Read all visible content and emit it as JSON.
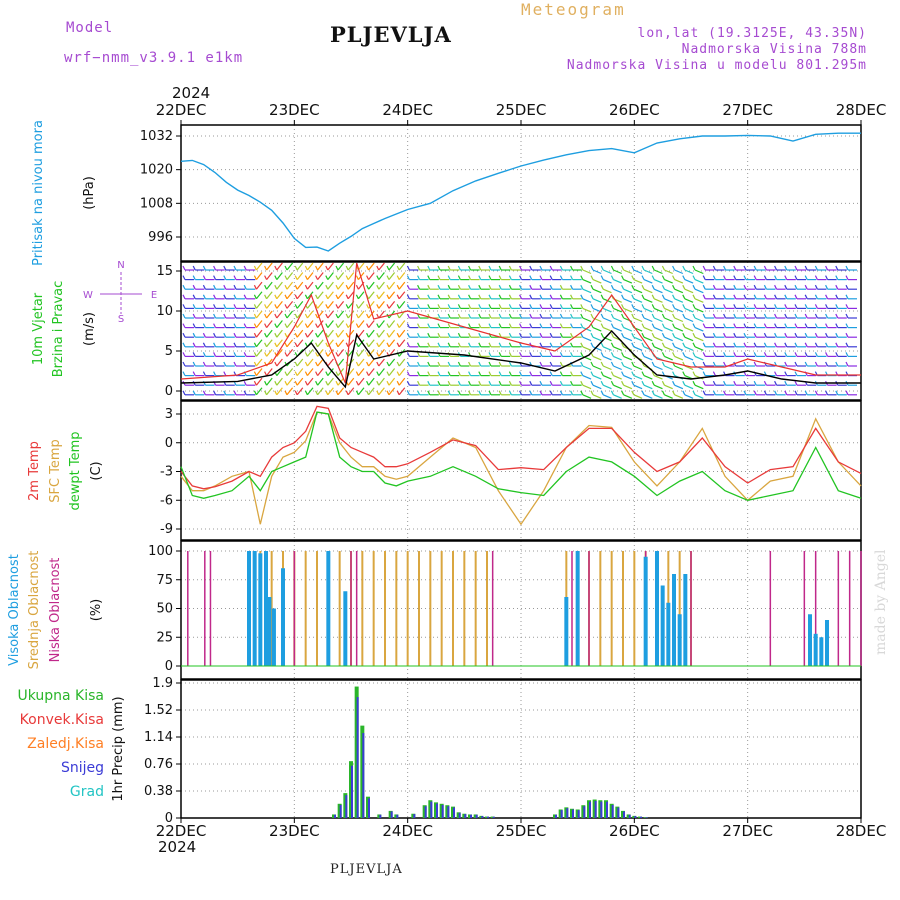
{
  "header": {
    "model_label": "Model",
    "model_name": "wrf−nmm_v3.9.1 e1km",
    "station": "PLJEVLJA",
    "chart_kind": "Meteogram",
    "lonlat": "lon,lat (19.3125E, 43.35N)",
    "elevation": "Nadmorska Visina 788m",
    "model_elevation": "Nadmorska Visina u modelu 801.295m",
    "year": "2024"
  },
  "footer": {
    "station": "PLJEVLJA",
    "credit": "made by Angel"
  },
  "colors": {
    "pressure": "#1e9ee0",
    "wind_avg": "#000000",
    "gust": "#e83030",
    "t2m": "#e83a3a",
    "sfc": "#d9a640",
    "dew": "#22c422",
    "high": "#1e9ee0",
    "mid": "#d9a640",
    "low": "#c0288a",
    "total": "#2ab52a",
    "snow": "#3b3bd6"
  },
  "chart_data": [
    {
      "type": "line",
      "name": "pressure",
      "ylabel_1": "Pritisak na nivou mora",
      "ylabel_2": "(hPa)",
      "x_ticks": [
        "22DEC",
        "23DEC",
        "24DEC",
        "25DEC",
        "26DEC",
        "27DEC",
        "28DEC"
      ],
      "y_ticks": [
        "996",
        "1008",
        "1020",
        "1032"
      ],
      "ylim": [
        988,
        1036
      ],
      "x": [
        0,
        0.1,
        0.2,
        0.3,
        0.4,
        0.5,
        0.6,
        0.7,
        0.8,
        0.9,
        1.0,
        1.1,
        1.2,
        1.3,
        1.4,
        1.5,
        1.6,
        1.7,
        1.8,
        1.9,
        2.0,
        2.2,
        2.4,
        2.6,
        2.8,
        3.0,
        3.2,
        3.4,
        3.6,
        3.8,
        4.0,
        4.2,
        4.4,
        4.6,
        4.8,
        5.0,
        5.2,
        5.4,
        5.6,
        5.8,
        6.0
      ],
      "values": [
        1023,
        1023.3,
        1021.8,
        1019,
        1015.5,
        1012.7,
        1010.8,
        1008.4,
        1005.5,
        1001,
        995.5,
        992.3,
        992.4,
        991,
        993.8,
        996.2,
        999,
        1000.8,
        1002.6,
        1004.2,
        1005.8,
        1008,
        1012.5,
        1016,
        1018.7,
        1021.3,
        1023.4,
        1025.3,
        1026.8,
        1027.5,
        1026,
        1029.5,
        1031,
        1032,
        1032,
        1032.2,
        1032,
        1030.2,
        1032.6,
        1033,
        1033
      ]
    },
    {
      "type": "line",
      "name": "wind",
      "ylabel_1": "10m Vjetar",
      "ylabel_2": "Brzina i Pravac",
      "ylabel_3": "(m/s)",
      "compass": {
        "n": "N",
        "s": "S",
        "w": "W",
        "e": "E"
      },
      "y_ticks": [
        "0",
        "5",
        "10",
        "15"
      ],
      "ylim": [
        -1,
        17
      ],
      "x": [
        0,
        0.5,
        0.8,
        1.0,
        1.15,
        1.3,
        1.45,
        1.55,
        1.7,
        2.0,
        2.5,
        3.0,
        3.3,
        3.6,
        3.8,
        4.0,
        4.2,
        4.5,
        4.8,
        5.0,
        5.3,
        5.6,
        6.0
      ],
      "series": [
        {
          "values": [
            1,
            1.2,
            2,
            4,
            6,
            3,
            0.5,
            7,
            4,
            5,
            4.5,
            3.5,
            2.5,
            4.5,
            7.5,
            4.5,
            2,
            1.5,
            2,
            2.5,
            1.5,
            1,
            1
          ]
        },
        {
          "values": [
            1.5,
            2,
            3.5,
            8,
            12,
            6,
            1,
            16,
            9,
            10,
            8,
            6,
            5,
            8,
            12,
            8,
            4,
            3,
            3,
            4,
            3,
            2,
            2
          ]
        }
      ]
    },
    {
      "type": "line",
      "name": "temperature",
      "ylabel_1": "2m Temp",
      "ylabel_2": "SFC Temp",
      "ylabel_3": "dewpt Temp",
      "ylabel_4": "(C)",
      "y_ticks": [
        "-9",
        "-6",
        "-3",
        "0",
        "3"
      ],
      "ylim": [
        -9.8,
        4.6
      ],
      "x": [
        0,
        0.1,
        0.2,
        0.3,
        0.45,
        0.6,
        0.7,
        0.8,
        0.9,
        1.0,
        1.1,
        1.2,
        1.3,
        1.4,
        1.5,
        1.6,
        1.7,
        1.8,
        1.9,
        2.0,
        2.2,
        2.4,
        2.6,
        2.8,
        3.0,
        3.2,
        3.4,
        3.6,
        3.8,
        4.0,
        4.2,
        4.4,
        4.6,
        4.8,
        5.0,
        5.2,
        5.4,
        5.6,
        5.8,
        6.0
      ],
      "series": [
        {
          "values": [
            -3,
            -4.5,
            -4.8,
            -4.6,
            -4,
            -3,
            -3.5,
            -1.5,
            -0.5,
            0,
            1.2,
            3.8,
            3.6,
            0.5,
            -0.5,
            -1,
            -1.5,
            -2.5,
            -2.5,
            -2.2,
            -1,
            0.3,
            -0.3,
            -2.8,
            -2.6,
            -2.8,
            -0.5,
            1.5,
            1.5,
            -1,
            -3,
            -2,
            0.5,
            -2.5,
            -4.2,
            -2.8,
            -2.5,
            1.5,
            -2,
            -3.2
          ]
        },
        {
          "values": [
            -3.5,
            -5,
            -5,
            -4.5,
            -3.5,
            -3,
            -8.5,
            -3.5,
            -1.5,
            -1,
            0.2,
            3.2,
            3,
            0,
            -1.5,
            -2.5,
            -2.5,
            -3.5,
            -3.8,
            -3.5,
            -1.5,
            0.5,
            -0.5,
            -5,
            -8.5,
            -5,
            -0.5,
            1.8,
            1.6,
            -2,
            -4.5,
            -2,
            1.5,
            -3.5,
            -6,
            -4,
            -3.5,
            2.5,
            -2,
            -4.5
          ]
        },
        {
          "values": [
            -2.5,
            -5.5,
            -5.8,
            -5.5,
            -5,
            -3.5,
            -5,
            -3,
            -2.5,
            -2,
            -1.5,
            3.2,
            3,
            -1.5,
            -2.5,
            -3,
            -3,
            -4.2,
            -4.5,
            -4,
            -3.5,
            -2.5,
            -3.5,
            -4.8,
            -5.2,
            -5.5,
            -3,
            -1.5,
            -2,
            -3.5,
            -5.5,
            -4,
            -3,
            -5,
            -6,
            -5.5,
            -5,
            -0.5,
            -5,
            -5.8
          ]
        }
      ]
    },
    {
      "type": "bar",
      "name": "cloud_cover",
      "ylabel_1": "Visoka Oblacnost",
      "ylabel_2": "Srednja Oblacnost",
      "ylabel_3": "Niska Oblacnost",
      "ylabel_4": "(%)",
      "y_ticks": [
        "0",
        "25",
        "50",
        "75",
        "100"
      ],
      "ylim": [
        0,
        100
      ],
      "series": [
        {
          "x": [
            0.06,
            0.21,
            0.26,
            1.0,
            1.5,
            1.55,
            2.75,
            3.45,
            3.6,
            4.1,
            4.5,
            5.2,
            5.5,
            5.6,
            5.8,
            5.9,
            6.0
          ],
          "values": [
            100,
            100,
            100,
            100,
            100,
            100,
            100,
            100,
            100,
            100,
            100,
            100,
            100,
            100,
            100,
            100,
            100
          ]
        },
        {
          "x": [
            0.6,
            0.7,
            0.8,
            0.9,
            1.0,
            1.1,
            1.2,
            1.3,
            1.4,
            1.5,
            1.6,
            1.7,
            1.8,
            1.9,
            2.0,
            2.1,
            2.2,
            2.3,
            2.4,
            2.5,
            2.6,
            2.7,
            3.4,
            3.5,
            3.6,
            3.7,
            3.8,
            3.9,
            4.0,
            4.1,
            4.2,
            4.3,
            4.4,
            4.5
          ],
          "values": [
            100,
            100,
            100,
            100,
            100,
            100,
            100,
            100,
            100,
            100,
            100,
            100,
            100,
            100,
            100,
            100,
            100,
            100,
            100,
            100,
            100,
            100,
            100,
            100,
            100,
            100,
            100,
            100,
            100,
            100,
            100,
            100,
            100,
            100
          ]
        },
        {
          "x": [
            0.6,
            0.65,
            0.7,
            0.75,
            0.78,
            0.82,
            0.9,
            1.3,
            1.45,
            3.4,
            3.5,
            4.1,
            4.2,
            4.25,
            4.3,
            4.35,
            4.4,
            4.45,
            5.55,
            5.6,
            5.65,
            5.7
          ],
          "values": [
            100,
            100,
            98,
            100,
            60,
            50,
            85,
            100,
            65,
            60,
            100,
            95,
            100,
            70,
            55,
            80,
            45,
            80,
            45,
            28,
            25,
            40
          ]
        }
      ]
    },
    {
      "type": "bar",
      "name": "precipitation",
      "ylabel_1": "1hr Precip (mm)",
      "legend": [
        "Ukupna Kisa",
        "Konvek.Kisa",
        "Zaledj.Kisa",
        "Snijeg",
        "Grad"
      ],
      "y_ticks": [
        "0",
        "0.38",
        "0.76",
        "1.14",
        "1.52",
        "1.9"
      ],
      "ylim": [
        0,
        1.9
      ],
      "series": [
        {
          "x": [
            1.35,
            1.4,
            1.45,
            1.5,
            1.55,
            1.6,
            1.65,
            1.75,
            1.85,
            1.9,
            2.05,
            2.15,
            2.2,
            2.25,
            2.3,
            2.35,
            2.4,
            2.45,
            2.5,
            2.55,
            2.6,
            2.65,
            2.7,
            2.75,
            3.3,
            3.35,
            3.4,
            3.45,
            3.5,
            3.55,
            3.6,
            3.65,
            3.7,
            3.75,
            3.8,
            3.85,
            3.9,
            3.95,
            4.0,
            4.05,
            4.1
          ],
          "values": [
            0.05,
            0.2,
            0.35,
            0.8,
            1.85,
            1.3,
            0.3,
            0.05,
            0.1,
            0.05,
            0.06,
            0.18,
            0.25,
            0.22,
            0.2,
            0.18,
            0.16,
            0.08,
            0.06,
            0.05,
            0.05,
            0.03,
            0.02,
            0.02,
            0.05,
            0.12,
            0.15,
            0.13,
            0.12,
            0.18,
            0.25,
            0.26,
            0.25,
            0.25,
            0.2,
            0.16,
            0.1,
            0.05,
            0.03,
            0.02,
            0.01
          ]
        }
      ]
    }
  ]
}
